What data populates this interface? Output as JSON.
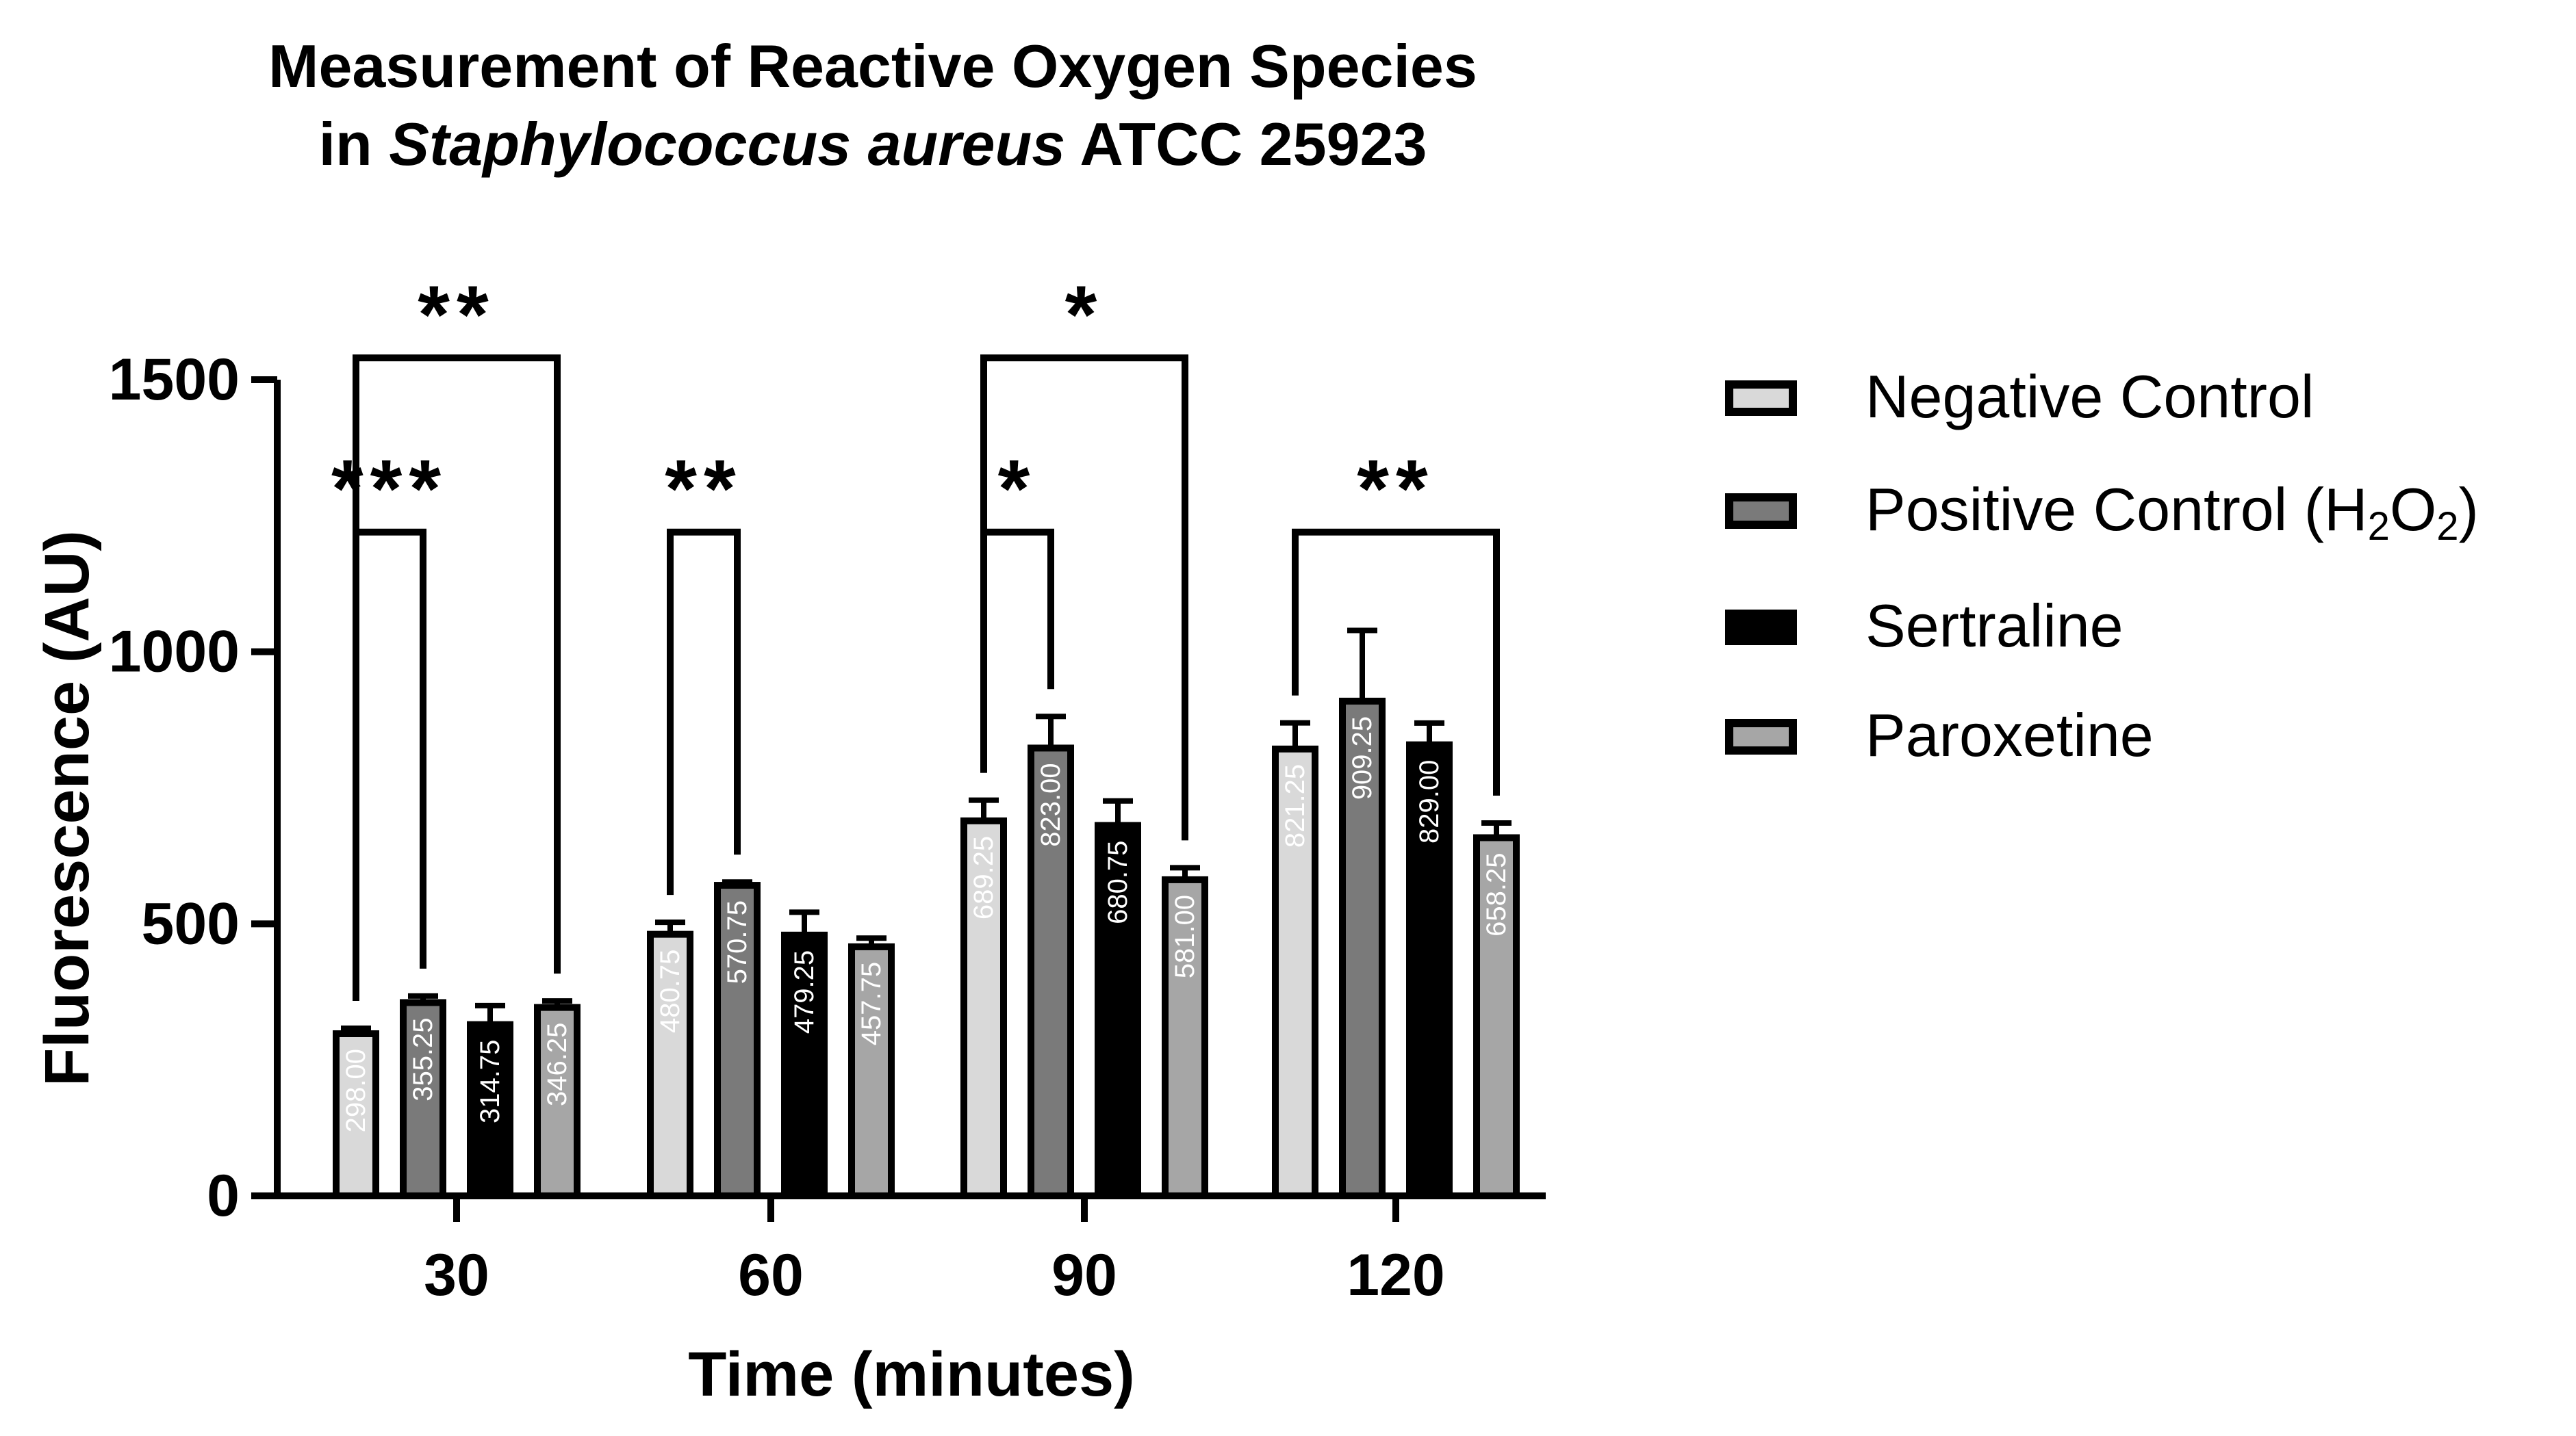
{
  "chart_data": {
    "type": "bar",
    "title_line1": "Measurement of Reactive Oxygen Species",
    "title_prefix": "in",
    "title_italic": "Staphylococcus aureus",
    "title_suffix": "ATCC 25923",
    "xlabel": "Time (minutes)",
    "ylabel": "Fluorescence (AU)",
    "ylim": [
      0,
      1500
    ],
    "yticks": [
      0,
      500,
      1000,
      1500
    ],
    "categories": [
      "30",
      "60",
      "90",
      "120"
    ],
    "series": [
      {
        "name": "Negative Control",
        "color": "#d9d9d9",
        "values": [
          298.0,
          480.75,
          689.25,
          821.25
        ],
        "labels": [
          "298.00",
          "480.75",
          "689.25",
          "821.25"
        ],
        "errors": [
          10,
          22,
          38,
          48
        ]
      },
      {
        "name": "Positive Control (H2O2)",
        "color": "#7a7a7a",
        "values": [
          355.25,
          570.75,
          823.0,
          909.25
        ],
        "labels": [
          "355.25",
          "570.75",
          "823.00",
          "909.25"
        ],
        "errors": [
          12,
          6,
          58,
          130
        ]
      },
      {
        "name": "Sertraline",
        "color": "#000000",
        "values": [
          314.75,
          479.25,
          680.75,
          829.0
        ],
        "labels": [
          "314.75",
          "479.25",
          "680.75",
          "829.00"
        ],
        "errors": [
          35,
          42,
          45,
          40
        ]
      },
      {
        "name": "Paroxetine",
        "color": "#a6a6a6",
        "values": [
          346.25,
          457.75,
          581.0,
          658.25
        ],
        "labels": [
          "346.25",
          "457.75",
          "581.00",
          "658.25"
        ],
        "errors": [
          12,
          16,
          22,
          27
        ]
      }
    ],
    "significance": [
      {
        "category": 0,
        "from_series": 0,
        "to_series": 1,
        "label": "***",
        "y": 1220
      },
      {
        "category": 0,
        "from_series": 0,
        "to_series": 3,
        "label": "**",
        "y": 1540
      },
      {
        "category": 1,
        "from_series": 0,
        "to_series": 1,
        "label": "**",
        "y": 1220
      },
      {
        "category": 2,
        "from_series": 0,
        "to_series": 1,
        "label": "*",
        "y": 1220
      },
      {
        "category": 2,
        "from_series": 0,
        "to_series": 3,
        "label": "*",
        "y": 1540
      },
      {
        "category": 3,
        "from_series": 0,
        "to_series": 3,
        "label": "**",
        "y": 1220
      }
    ],
    "legend": {
      "position": "right",
      "items": [
        {
          "label": "Negative Control",
          "color": "#d9d9d9"
        },
        {
          "label_main": "Positive Control (H",
          "sub1": "2",
          "mid": "O",
          "sub2": "2",
          "tail": ")",
          "color": "#7a7a7a"
        },
        {
          "label": "Sertraline",
          "color": "#000000"
        },
        {
          "label": "Paroxetine",
          "color": "#a6a6a6"
        }
      ]
    }
  }
}
